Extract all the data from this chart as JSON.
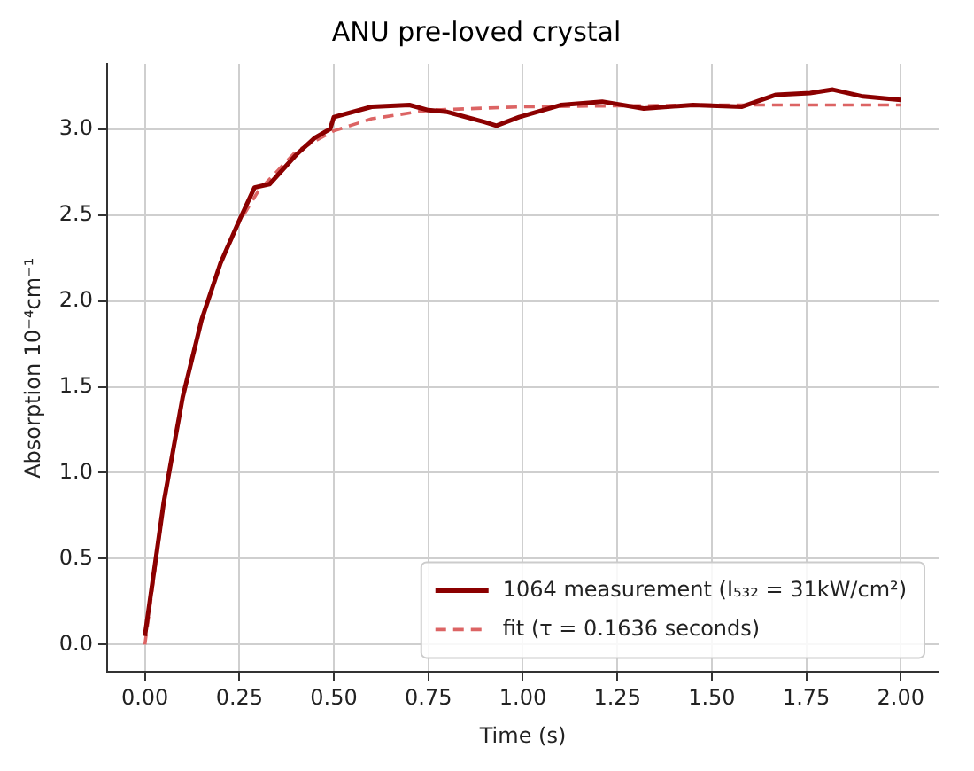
{
  "chart_data": {
    "type": "line",
    "title": "ANU pre-loved crystal",
    "xlabel": "Time (s)",
    "ylabel": "Absorption 10⁻⁴cm⁻¹",
    "xlim": [
      -0.1,
      2.1
    ],
    "xticks": [
      {
        "value": 0,
        "label": "0.00"
      },
      0.25,
      {
        "value": 0.5,
        "label": "0.50"
      },
      0.75,
      {
        "value": 1,
        "label": "1.00"
      },
      1.25,
      {
        "value": 1.5,
        "label": "1.50"
      },
      1.75,
      {
        "value": 2,
        "label": "2.00"
      }
    ],
    "ylim": [
      -0.16,
      3.38
    ],
    "yticks": [
      {
        "value": 0,
        "label": "0.0"
      },
      0.5,
      {
        "value": 1,
        "label": "1.0"
      },
      1.5,
      {
        "value": 2,
        "label": "2.0"
      },
      2.5,
      {
        "value": 3,
        "label": "3.0"
      }
    ],
    "grid": true,
    "legend": "bottom right",
    "marker": "none",
    "series": [
      {
        "name": "1064 measurement (I₅₃₂ = 31kW/cm²)",
        "color": "#8b0000",
        "line_style": "solid",
        "x": [
          0,
          0.05,
          0.1,
          0.15,
          0.2,
          0.25,
          0.29,
          0.33,
          0.4,
          0.45,
          0.49,
          0.5,
          0.6,
          0.7,
          0.75,
          0.8,
          0.9,
          0.93,
          0.99,
          1.1,
          1.21,
          1.32,
          1.45,
          1.58,
          1.67,
          1.76,
          1.82,
          1.9,
          2.0
        ],
        "values": [
          0.05,
          0.83,
          1.44,
          1.89,
          2.22,
          2.47,
          2.66,
          2.68,
          2.85,
          2.95,
          3.0,
          3.07,
          3.13,
          3.14,
          3.11,
          3.1,
          3.04,
          3.02,
          3.07,
          3.14,
          3.16,
          3.12,
          3.14,
          3.13,
          3.2,
          3.21,
          3.23,
          3.19,
          3.17
        ]
      },
      {
        "name": "fit (τ = 0.1636 seconds)",
        "color": "#dc6464",
        "line_style": "dashed",
        "x": [
          0,
          0.05,
          0.1,
          0.15,
          0.2,
          0.25,
          0.3,
          0.4,
          0.5,
          0.6,
          0.75,
          1.0,
          1.5,
          2.0
        ],
        "values": [
          0,
          0.83,
          1.44,
          1.89,
          2.22,
          2.46,
          2.64,
          2.87,
          2.99,
          3.06,
          3.11,
          3.13,
          3.14,
          3.14
        ]
      }
    ]
  }
}
